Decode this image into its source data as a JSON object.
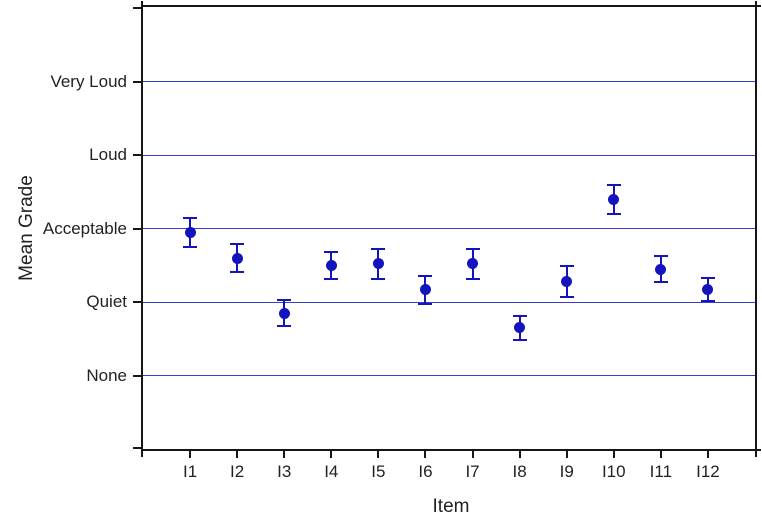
{
  "chart_data": {
    "type": "scatter",
    "title": "",
    "xlabel": "Item",
    "ylabel": "Mean Grade",
    "categories": [
      "I1",
      "I2",
      "I3",
      "I4",
      "I5",
      "I6",
      "I7",
      "I8",
      "I9",
      "I10",
      "I11",
      "I12"
    ],
    "series": [
      {
        "name": "mean-grade",
        "values": [
          2.95,
          2.6,
          1.85,
          2.5,
          2.52,
          2.17,
          2.52,
          1.65,
          2.28,
          3.4,
          2.45,
          2.17
        ],
        "errors": [
          0.2,
          0.19,
          0.18,
          0.18,
          0.2,
          0.19,
          0.2,
          0.16,
          0.21,
          0.2,
          0.18,
          0.16
        ]
      }
    ],
    "y_ticks": [
      {
        "label": "None",
        "value": 1
      },
      {
        "label": "Quiet",
        "value": 2
      },
      {
        "label": "Acceptable",
        "value": 3
      },
      {
        "label": "Loud",
        "value": 4
      },
      {
        "label": "Very Loud",
        "value": 5
      }
    ],
    "ylim": [
      0,
      6.02
    ],
    "xlim": [
      0,
      13
    ],
    "grid": "horizontal-at-y-ticks",
    "legend": "none",
    "marker_shape": "filled-circle-with-error-bars",
    "colors": {
      "marker": "#1414be",
      "errorbar": "#1414be",
      "gridline": "#3c3ccc",
      "axis": "#161616",
      "text": "#222222"
    }
  }
}
